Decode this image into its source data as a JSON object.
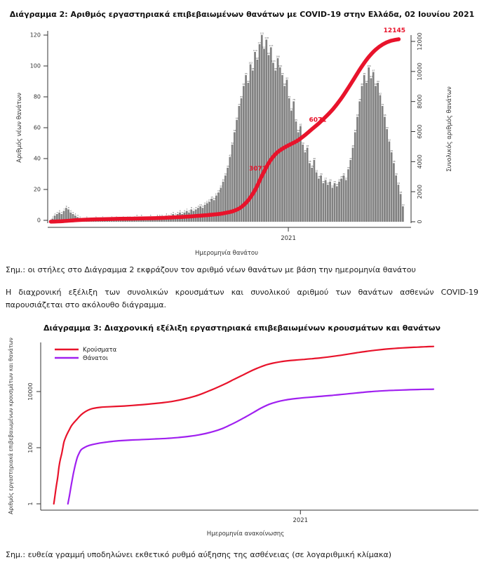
{
  "document": {
    "chart2_note": "Σημ.: οι στήλες στο Διάγραμμα 2 εκφράζουν τον αριθμό νέων θανάτων με βάση την ημερομηνία θανάτου",
    "paragraph": "Η διαχρονική εξέλιξη των συνολικών κρουσμάτων και συνολικού αριθμού των θανάτων ασθενών COVID-19 παρουσιάζεται στο ακόλουθο διάγραμμα.",
    "chart3_note": "Σημ.: ευθεία γραμμή υποδηλώνει εκθετικό ρυθμό αύξησης της ασθένειας (σε λογαριθμική κλίμακα)"
  },
  "colors": {
    "line_red": "#e8132b",
    "line_purple": "#a020f0",
    "bar_gray": "#818181",
    "bar_label": "#555555",
    "axis": "#333333",
    "text": "#1a1a1a"
  },
  "chart_data": [
    {
      "type": "bar",
      "title": "Διάγραμμα 2: Αριθμός εργαστηριακά επιβεβαιωμένων θανάτων με COVID-19 στην Ελλάδα, 02 Ιουνίου 2021",
      "xlabel": "Ημερομηνία θανάτου",
      "ylabel_left": "Αριθμός νέων θανάτων",
      "ylabel_right": "Συνολικός αριθμός θανάτων",
      "yticks_left": [
        0,
        20,
        40,
        60,
        80,
        100,
        120
      ],
      "yticks_right": [
        0,
        2000,
        4000,
        6000,
        8000,
        10000,
        12000
      ],
      "ylim_left": [
        0,
        125
      ],
      "ylim_right": [
        0,
        12600
      ],
      "xticks": [
        {
          "label": "2021",
          "pos": 0.674
        }
      ],
      "bar_values": [
        1,
        2,
        4,
        5,
        6,
        5,
        7,
        9,
        8,
        6,
        5,
        4,
        3,
        2,
        1,
        1,
        2,
        1,
        1,
        1,
        2,
        1,
        1,
        2,
        1,
        1,
        1,
        2,
        1,
        2,
        1,
        1,
        2,
        1,
        2,
        2,
        1,
        2,
        3,
        2,
        3,
        2,
        1,
        2,
        3,
        2,
        2,
        3,
        3,
        3,
        2,
        4,
        3,
        4,
        5,
        4,
        5,
        6,
        5,
        6,
        7,
        6,
        8,
        7,
        8,
        9,
        10,
        9,
        11,
        12,
        13,
        15,
        14,
        17,
        19,
        22,
        26,
        30,
        35,
        42,
        50,
        58,
        66,
        75,
        80,
        88,
        95,
        90,
        102,
        98,
        110,
        105,
        115,
        121,
        112,
        118,
        108,
        113,
        103,
        98,
        106,
        100,
        95,
        88,
        92,
        80,
        72,
        78,
        65,
        58,
        62,
        50,
        45,
        48,
        38,
        35,
        40,
        32,
        28,
        30,
        25,
        27,
        24,
        26,
        22,
        25,
        23,
        26,
        28,
        30,
        27,
        34,
        40,
        48,
        58,
        68,
        78,
        88,
        95,
        90,
        100,
        93,
        97,
        88,
        90,
        82,
        75,
        68,
        60,
        52,
        45,
        38,
        30,
        24,
        18,
        10
      ],
      "cumulative_line": [
        [
          0.005,
          5
        ],
        [
          0.04,
          40
        ],
        [
          0.08,
          110
        ],
        [
          0.12,
          150
        ],
        [
          0.16,
          175
        ],
        [
          0.2,
          195
        ],
        [
          0.25,
          215
        ],
        [
          0.3,
          240
        ],
        [
          0.35,
          290
        ],
        [
          0.4,
          355
        ],
        [
          0.44,
          430
        ],
        [
          0.48,
          520
        ],
        [
          0.5,
          600
        ],
        [
          0.52,
          720
        ],
        [
          0.54,
          950
        ],
        [
          0.56,
          1400
        ],
        [
          0.58,
          2100
        ],
        [
          0.6,
          3071
        ],
        [
          0.62,
          3950
        ],
        [
          0.64,
          4550
        ],
        [
          0.66,
          4900
        ],
        [
          0.68,
          5150
        ],
        [
          0.7,
          5400
        ],
        [
          0.72,
          5750
        ],
        [
          0.74,
          6150
        ],
        [
          0.76,
          6550
        ],
        [
          0.78,
          7000
        ],
        [
          0.8,
          7500
        ],
        [
          0.82,
          8100
        ],
        [
          0.84,
          8800
        ],
        [
          0.86,
          9550
        ],
        [
          0.88,
          10300
        ],
        [
          0.9,
          10950
        ],
        [
          0.92,
          11450
        ],
        [
          0.94,
          11800
        ],
        [
          0.96,
          12020
        ],
        [
          0.985,
          12145
        ]
      ],
      "annotations": [
        {
          "label": "3071",
          "x": 0.588,
          "value": 3400
        },
        {
          "label": "6071",
          "x": 0.757,
          "value": 6650
        },
        {
          "label": "12145",
          "x": 0.973,
          "value": 12600
        }
      ]
    },
    {
      "type": "line",
      "scale": "log",
      "title": "Διάγραμμα 3: Διαχρονική εξέλιξη εργαστηριακά επιβεβαιωμένων κρουσμάτων και θανάτων",
      "xlabel": "Ημερομηνία ανακοίνωσης",
      "ylabel": "Αριθμός εργαστηριακά επιβεβαιωμένων κρουσμάτων και θανάτων",
      "yticks": [
        1,
        100,
        10000
      ],
      "xticks": [
        {
          "label": "2021",
          "pos": 0.66
        }
      ],
      "legend": [
        {
          "label": "Κρούσματα",
          "color": "#e8132b"
        },
        {
          "label": "Θάνατοι",
          "color": "#a020f0"
        }
      ],
      "series": [
        {
          "name": "Κρούσματα",
          "color": "#e8132b",
          "points": [
            [
              0.03,
              1
            ],
            [
              0.033,
              2
            ],
            [
              0.036,
              4
            ],
            [
              0.04,
              9
            ],
            [
              0.043,
              20
            ],
            [
              0.046,
              35
            ],
            [
              0.05,
              60
            ],
            [
              0.053,
              100
            ],
            [
              0.056,
              160
            ],
            [
              0.06,
              230
            ],
            [
              0.065,
              330
            ],
            [
              0.07,
              450
            ],
            [
              0.075,
              600
            ],
            [
              0.08,
              740
            ],
            [
              0.09,
              1060
            ],
            [
              0.1,
              1500
            ],
            [
              0.11,
              1900
            ],
            [
              0.12,
              2250
            ],
            [
              0.13,
              2500
            ],
            [
              0.15,
              2750
            ],
            [
              0.17,
              2870
            ],
            [
              0.19,
              2960
            ],
            [
              0.21,
              3060
            ],
            [
              0.24,
              3270
            ],
            [
              0.27,
              3550
            ],
            [
              0.3,
              3900
            ],
            [
              0.33,
              4400
            ],
            [
              0.36,
              5300
            ],
            [
              0.39,
              6800
            ],
            [
              0.41,
              8500
            ],
            [
              0.43,
              11000
            ],
            [
              0.45,
              14500
            ],
            [
              0.47,
              19500
            ],
            [
              0.49,
              27000
            ],
            [
              0.51,
              37000
            ],
            [
              0.53,
              51000
            ],
            [
              0.55,
              68000
            ],
            [
              0.57,
              87000
            ],
            [
              0.59,
              103000
            ],
            [
              0.61,
              116000
            ],
            [
              0.63,
              126000
            ],
            [
              0.65,
              133000
            ],
            [
              0.67,
              140000
            ],
            [
              0.69,
              148000
            ],
            [
              0.71,
              158000
            ],
            [
              0.73,
              170000
            ],
            [
              0.75,
              185000
            ],
            [
              0.77,
              203000
            ],
            [
              0.79,
              225000
            ],
            [
              0.81,
              249000
            ],
            [
              0.83,
              272000
            ],
            [
              0.85,
              295000
            ],
            [
              0.87,
              316000
            ],
            [
              0.89,
              335000
            ],
            [
              0.91,
              352000
            ],
            [
              0.93,
              366000
            ],
            [
              0.95,
              378000
            ],
            [
              0.97,
              389000
            ],
            [
              0.985,
              398000
            ],
            [
              1.0,
              405000
            ]
          ]
        },
        {
          "name": "Θάνατοι",
          "color": "#a020f0",
          "points": [
            [
              0.066,
              1
            ],
            [
              0.07,
              2
            ],
            [
              0.075,
              5
            ],
            [
              0.08,
              12
            ],
            [
              0.085,
              25
            ],
            [
              0.09,
              45
            ],
            [
              0.095,
              65
            ],
            [
              0.1,
              85
            ],
            [
              0.11,
              105
            ],
            [
              0.12,
              120
            ],
            [
              0.14,
              140
            ],
            [
              0.16,
              155
            ],
            [
              0.18,
              168
            ],
            [
              0.2,
              178
            ],
            [
              0.23,
              188
            ],
            [
              0.26,
              196
            ],
            [
              0.29,
              205
            ],
            [
              0.32,
              215
            ],
            [
              0.35,
              232
            ],
            [
              0.38,
              258
            ],
            [
              0.4,
              285
            ],
            [
              0.42,
              325
            ],
            [
              0.44,
              385
            ],
            [
              0.46,
              480
            ],
            [
              0.48,
              640
            ],
            [
              0.5,
              880
            ],
            [
              0.52,
              1250
            ],
            [
              0.54,
              1800
            ],
            [
              0.56,
              2600
            ],
            [
              0.58,
              3500
            ],
            [
              0.6,
              4300
            ],
            [
              0.62,
              4950
            ],
            [
              0.64,
              5450
            ],
            [
              0.66,
              5850
            ],
            [
              0.68,
              6200
            ],
            [
              0.7,
              6550
            ],
            [
              0.72,
              6900
            ],
            [
              0.74,
              7300
            ],
            [
              0.76,
              7750
            ],
            [
              0.78,
              8250
            ],
            [
              0.8,
              8800
            ],
            [
              0.82,
              9400
            ],
            [
              0.84,
              9950
            ],
            [
              0.86,
              10400
            ],
            [
              0.88,
              10800
            ],
            [
              0.9,
              11100
            ],
            [
              0.92,
              11350
            ],
            [
              0.94,
              11600
            ],
            [
              0.96,
              11800
            ],
            [
              0.98,
              11990
            ],
            [
              1.0,
              12145
            ]
          ]
        }
      ]
    }
  ]
}
